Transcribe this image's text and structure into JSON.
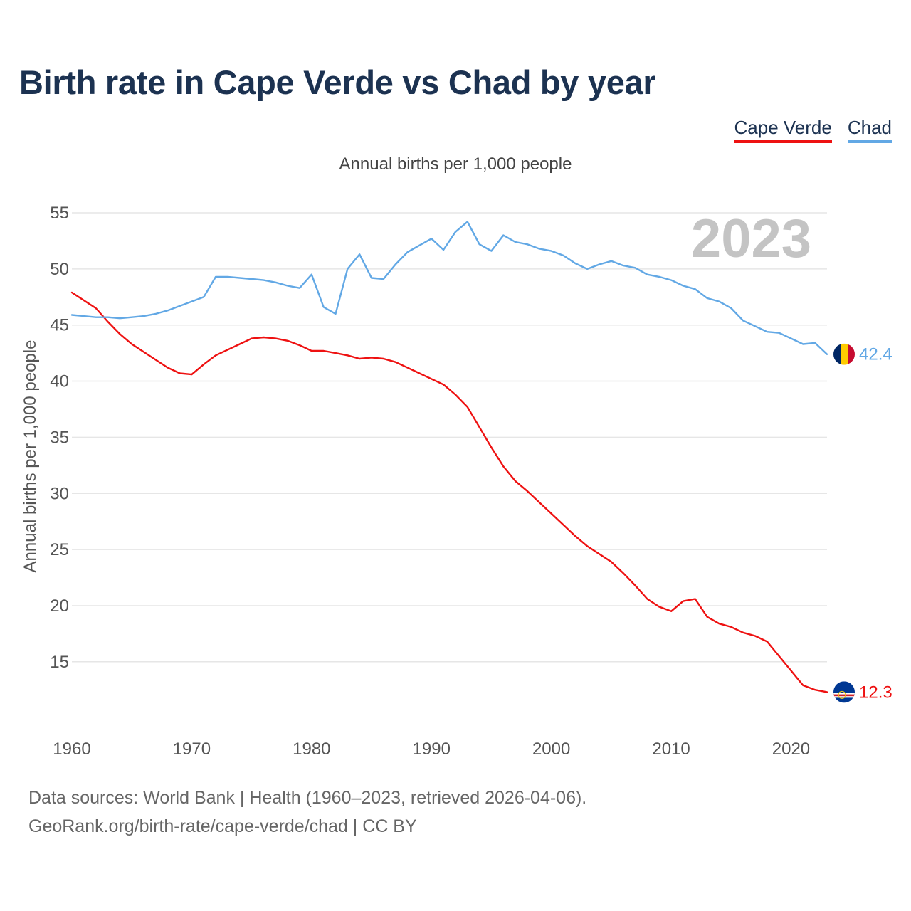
{
  "title": "Birth rate in Cape Verde vs Chad by year",
  "subtitle": "Annual births per 1,000 people",
  "legend": [
    {
      "label": "Cape Verde",
      "color": "#ee1111"
    },
    {
      "label": "Chad",
      "color": "#62a8e5"
    }
  ],
  "footer": {
    "line1": "Data sources: World Bank | Health (1960–2023, retrieved 2026-04-06).",
    "line2": "GeoRank.org/birth-rate/cape-verde/chad | CC BY"
  },
  "chart_data": {
    "type": "line",
    "title": "Birth rate in Cape Verde vs Chad by year",
    "subtitle": "Annual births per 1,000 people",
    "xlabel": "",
    "ylabel": "Annual births per 1,000 people",
    "year_watermark": "2023",
    "xlim": [
      1960,
      2023
    ],
    "ylim": [
      10,
      55
    ],
    "xticks": [
      1960,
      1970,
      1980,
      1990,
      2000,
      2010,
      2020
    ],
    "yticks": [
      15,
      20,
      25,
      30,
      35,
      40,
      45,
      50,
      55
    ],
    "grid": true,
    "legend_position": "top-right",
    "x": [
      1960,
      1961,
      1962,
      1963,
      1964,
      1965,
      1966,
      1967,
      1968,
      1969,
      1970,
      1971,
      1972,
      1973,
      1974,
      1975,
      1976,
      1977,
      1978,
      1979,
      1980,
      1981,
      1982,
      1983,
      1984,
      1985,
      1986,
      1987,
      1988,
      1989,
      1990,
      1991,
      1992,
      1993,
      1994,
      1995,
      1996,
      1997,
      1998,
      1999,
      2000,
      2001,
      2002,
      2003,
      2004,
      2005,
      2006,
      2007,
      2008,
      2009,
      2010,
      2011,
      2012,
      2013,
      2014,
      2015,
      2016,
      2017,
      2018,
      2019,
      2020,
      2021,
      2022,
      2023
    ],
    "series": [
      {
        "name": "Cape Verde",
        "color": "#ee1111",
        "end_label": "12.3",
        "values": [
          47.9,
          47.2,
          46.5,
          45.3,
          44.2,
          43.3,
          42.6,
          41.9,
          41.2,
          40.7,
          40.6,
          41.5,
          42.3,
          42.8,
          43.3,
          43.8,
          43.9,
          43.8,
          43.6,
          43.2,
          42.7,
          42.7,
          42.5,
          42.3,
          42.0,
          42.1,
          42.0,
          41.7,
          41.2,
          40.7,
          40.2,
          39.7,
          38.8,
          37.7,
          35.9,
          34.1,
          32.4,
          31.1,
          30.2,
          29.2,
          28.2,
          27.2,
          26.2,
          25.3,
          24.6,
          23.9,
          22.9,
          21.8,
          20.6,
          19.9,
          19.5,
          20.4,
          20.6,
          19.0,
          18.4,
          18.1,
          17.6,
          17.3,
          16.8,
          15.5,
          14.2,
          12.9,
          12.5,
          12.3
        ]
      },
      {
        "name": "Chad",
        "color": "#62a8e5",
        "end_label": "42.4",
        "values": [
          45.9,
          45.8,
          45.7,
          45.7,
          45.6,
          45.7,
          45.8,
          46.0,
          46.3,
          46.7,
          47.1,
          47.5,
          49.3,
          49.3,
          49.2,
          49.1,
          49.0,
          48.8,
          48.5,
          48.3,
          49.5,
          46.6,
          46.0,
          50.0,
          51.3,
          49.2,
          49.1,
          50.4,
          51.5,
          52.1,
          52.7,
          51.7,
          53.3,
          54.2,
          52.2,
          51.6,
          53.0,
          52.4,
          52.2,
          51.8,
          51.6,
          51.2,
          50.5,
          50.0,
          50.4,
          50.7,
          50.3,
          50.1,
          49.5,
          49.3,
          49.0,
          48.5,
          48.2,
          47.4,
          47.1,
          46.5,
          45.4,
          44.9,
          44.4,
          44.3,
          43.8,
          43.3,
          43.4,
          42.4
        ]
      }
    ]
  }
}
